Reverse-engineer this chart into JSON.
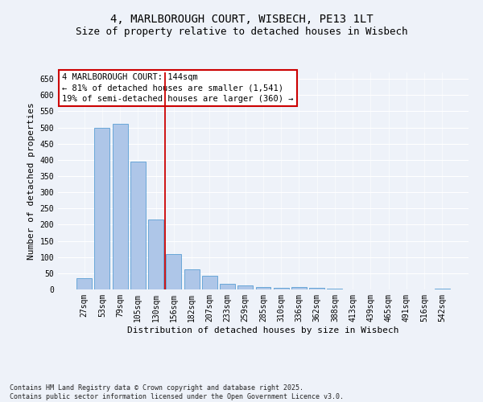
{
  "title1": "4, MARLBOROUGH COURT, WISBECH, PE13 1LT",
  "title2": "Size of property relative to detached houses in Wisbech",
  "xlabel": "Distribution of detached houses by size in Wisbech",
  "ylabel": "Number of detached properties",
  "categories": [
    "27sqm",
    "53sqm",
    "79sqm",
    "105sqm",
    "130sqm",
    "156sqm",
    "182sqm",
    "207sqm",
    "233sqm",
    "259sqm",
    "285sqm",
    "310sqm",
    "336sqm",
    "362sqm",
    "388sqm",
    "413sqm",
    "439sqm",
    "465sqm",
    "491sqm",
    "516sqm",
    "542sqm"
  ],
  "values": [
    35,
    500,
    510,
    395,
    215,
    110,
    62,
    42,
    18,
    13,
    8,
    5,
    8,
    4,
    2,
    0,
    1,
    0,
    0,
    1,
    2
  ],
  "bar_color": "#aec6e8",
  "bar_edge_color": "#5a9fd4",
  "vline_x": 4.5,
  "vline_color": "#cc0000",
  "annotation_title": "4 MARLBOROUGH COURT: 144sqm",
  "annotation_line1": "← 81% of detached houses are smaller (1,541)",
  "annotation_line2": "19% of semi-detached houses are larger (360) →",
  "box_color": "#cc0000",
  "footer1": "Contains HM Land Registry data © Crown copyright and database right 2025.",
  "footer2": "Contains public sector information licensed under the Open Government Licence v3.0.",
  "ylim": [
    0,
    670
  ],
  "yticks": [
    0,
    50,
    100,
    150,
    200,
    250,
    300,
    350,
    400,
    450,
    500,
    550,
    600,
    650
  ],
  "bg_color": "#eef2f9",
  "grid_color": "#ffffff",
  "title_fontsize": 10,
  "subtitle_fontsize": 9,
  "axis_fontsize": 8,
  "tick_fontsize": 7,
  "ann_fontsize": 7.5,
  "footer_fontsize": 6
}
